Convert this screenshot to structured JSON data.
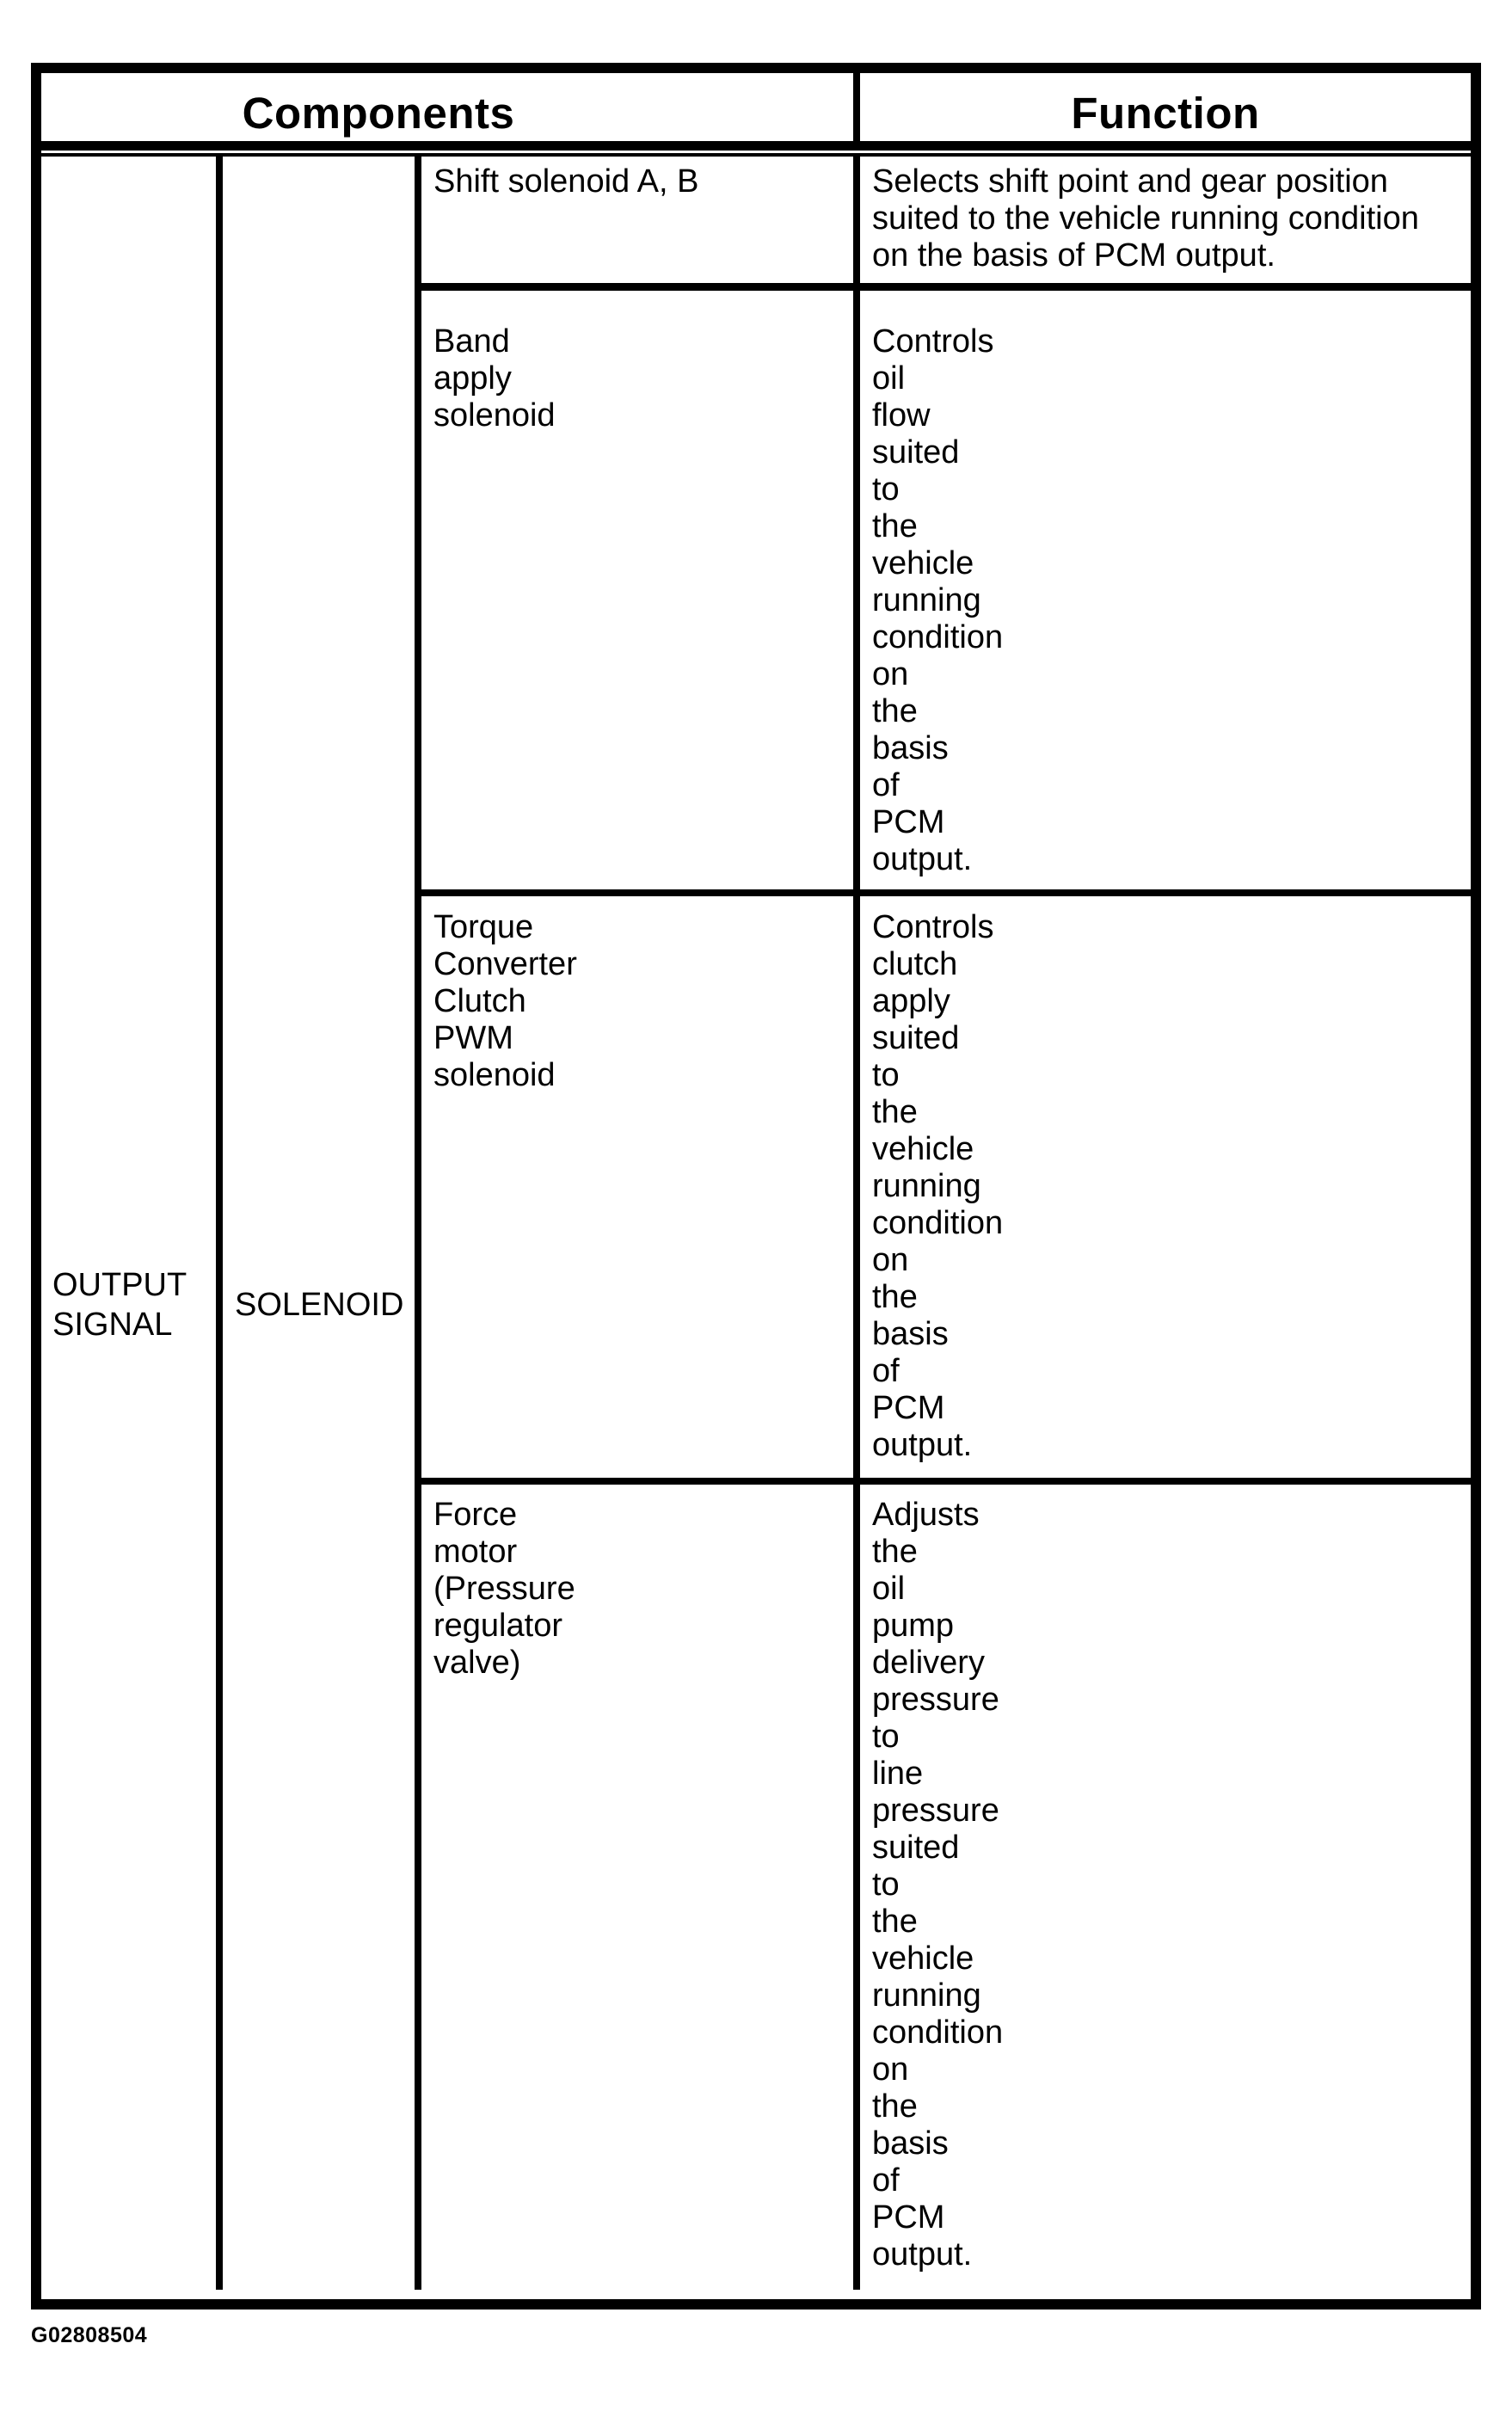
{
  "page": {
    "figure_id": "G02808504"
  },
  "theme": {
    "ink_color": "#000000",
    "paper_color": "#ffffff"
  },
  "table": {
    "header": {
      "components": "Components",
      "function": "Function"
    },
    "span_cells": {
      "output_signal": {
        "lines": [
          "OUTPUT",
          "SIGNAL"
        ]
      },
      "solenoid": {
        "lines": [
          "SOLENOID"
        ]
      }
    },
    "rows": [
      {
        "component_lines": [
          "Shift solenoid A, B"
        ],
        "function_lines": [
          "Selects shift point and gear position",
          "suited to the vehicle running condition",
          "on the basis of PCM output."
        ]
      },
      {
        "component_lines": [
          "Band",
          "apply",
          "solenoid"
        ],
        "function_lines": [
          "Controls",
          "oil",
          "flow",
          "suited",
          "to",
          "the",
          "vehicle",
          "running",
          "condition",
          "on",
          "the",
          "basis",
          "of",
          "PCM",
          "output."
        ]
      },
      {
        "component_lines": [
          "Torque",
          "Converter",
          "Clutch",
          "PWM",
          "solenoid"
        ],
        "function_lines": [
          "Controls",
          "clutch",
          "apply",
          "suited",
          "to",
          "the",
          "vehicle",
          "running",
          "condition",
          "on",
          "the",
          "basis",
          "of",
          "PCM",
          "output."
        ]
      },
      {
        "component_lines": [
          "Force",
          "motor",
          "(Pressure",
          "regulator",
          "valve)"
        ],
        "function_lines": [
          "Adjusts",
          "the",
          "oil",
          "pump",
          "delivery",
          "pressure",
          "to",
          "line",
          "pressure",
          "suited",
          "to",
          "the",
          "vehicle",
          "running",
          "condition",
          "on",
          "the",
          "basis",
          "of",
          "PCM",
          "output."
        ]
      }
    ]
  }
}
